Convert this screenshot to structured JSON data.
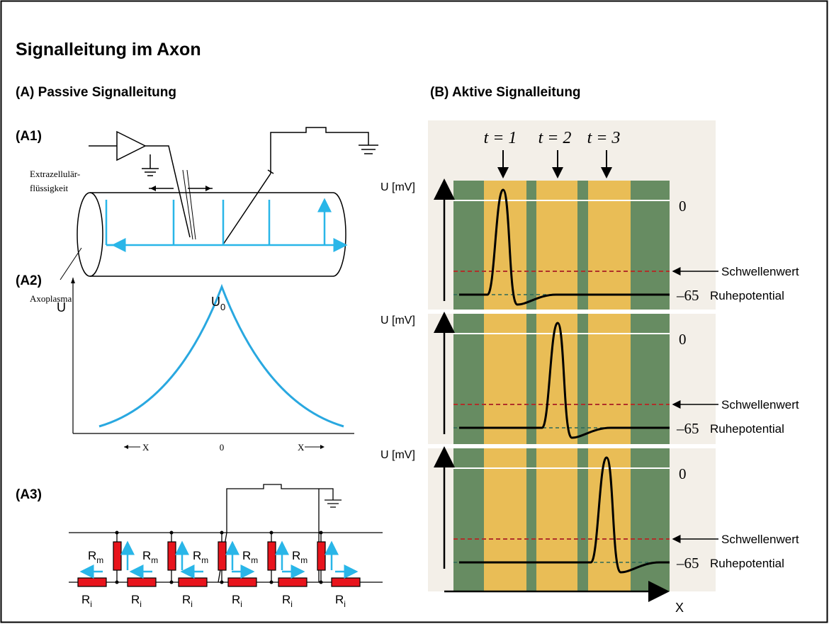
{
  "title": "Signalleitung im Axon",
  "panel_a": {
    "heading": "(A) Passive Signalleitung",
    "a1": {
      "label": "(A1)",
      "extracellular": [
        "Extrazellulär-",
        "flüssigkeit"
      ],
      "axoplasma": "Axoplasma"
    },
    "a2": {
      "label": "(A2)",
      "y_label": "U",
      "peak": {
        "base": "U",
        "sub": "0"
      },
      "x_left": "X",
      "x_center": "0",
      "x_right": "X"
    },
    "a3": {
      "label": "(A3)",
      "rm": [
        {
          "base": "R",
          "sub": "m"
        },
        {
          "base": "R",
          "sub": "m"
        },
        {
          "base": "R",
          "sub": "m"
        },
        {
          "base": "R",
          "sub": "m"
        },
        {
          "base": "R",
          "sub": "m"
        }
      ],
      "ri": [
        {
          "base": "R",
          "sub": "i"
        },
        {
          "base": "R",
          "sub": "i"
        },
        {
          "base": "R",
          "sub": "i"
        },
        {
          "base": "R",
          "sub": "i"
        },
        {
          "base": "R",
          "sub": "i"
        },
        {
          "base": "R",
          "sub": "i"
        }
      ]
    }
  },
  "panel_b": {
    "heading": "(B) Aktive Signalleitung",
    "times": [
      "t = 1",
      "t = 2",
      "t = 3"
    ],
    "traces": [
      {
        "y_label": "U [mV]",
        "zero": "0",
        "rest_value": "–65",
        "threshold": "Schwellenwert",
        "rest": "Ruhepotential"
      },
      {
        "y_label": "U [mV]",
        "zero": "0",
        "rest_value": "–65",
        "threshold": "Schwellenwert",
        "rest": "Ruhepotential"
      },
      {
        "y_label": "U [mV]",
        "zero": "0",
        "rest_value": "–65",
        "threshold": "Schwellenwert",
        "rest": "Ruhepotential"
      }
    ],
    "x_label": "X"
  }
}
